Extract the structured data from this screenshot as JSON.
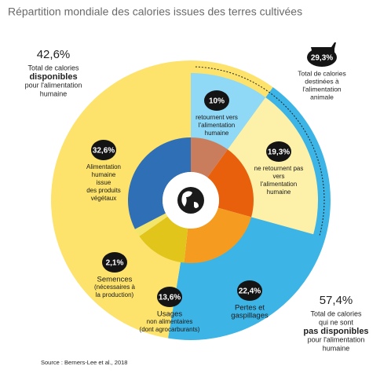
{
  "chart_data": {
    "type": "donut",
    "title": "Répartition mondiale des calories issues des terres cultivées",
    "source": "Source : Berners-Lee et al., 2018",
    "outer": {
      "values": [
        42.6,
        57.4
      ],
      "value_labels": [
        "42,6%",
        "57,4%"
      ],
      "colors": [
        "#3db4e6",
        "#fde36b"
      ],
      "descriptions": [
        [
          "Total de calories",
          "disponibles",
          "pour l'alimentation",
          "humaine"
        ],
        [
          "Total de calories",
          "qui ne sont",
          "pas disponibles",
          "pour l'alimentation",
          "humaine"
        ]
      ]
    },
    "animal": {
      "values": [
        29.3
      ],
      "value_labels": [
        "29,3%"
      ],
      "colors": [
        "#8fd8f6",
        "#fdf1aa"
      ],
      "descriptions": [
        [
          "Total de calories",
          "destinées à",
          "l'alimentation",
          "animale"
        ]
      ]
    },
    "inner": {
      "values": [
        10,
        19.3,
        22.4,
        13.6,
        2.1,
        32.6
      ],
      "value_labels": [
        "10%",
        "19,3%",
        "22,4%",
        "13,6%",
        "2,1%",
        "32,6%"
      ],
      "colors": [
        "#c97d5c",
        "#e9600c",
        "#f59c20",
        "#e1c51b",
        "#f3e46a",
        "#2f6fb6"
      ],
      "descriptions": [
        [
          "retournent vers",
          "l'alimentation",
          "humaine"
        ],
        [
          "ne retournent pas",
          "vers",
          "l'alimentation",
          "humaine"
        ],
        [
          "Pertes et",
          "gaspillages"
        ],
        [
          "Usages",
          "non alimentaires",
          "(dont agrocarburants)"
        ],
        [
          "Semences",
          "(nécessaires à",
          "la production)"
        ],
        [
          "Alimentation",
          "humaine",
          "issue",
          "des produits",
          "végétaux"
        ]
      ]
    }
  }
}
